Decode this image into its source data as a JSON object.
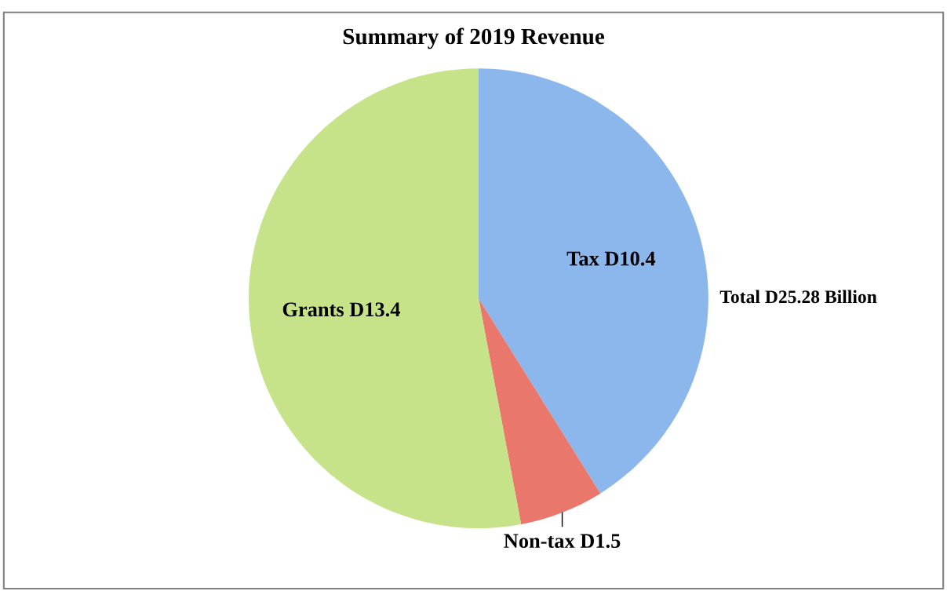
{
  "chart_data": {
    "type": "pie",
    "title": "Summary of 2019 Revenue",
    "categories": [
      "Tax D10.4",
      "Non-tax D1.5",
      "Grants D13.4"
    ],
    "values": [
      10.4,
      1.5,
      13.4
    ],
    "colors": [
      "#8cb7ec",
      "#e9776b",
      "#c6e389"
    ],
    "annotations": [
      "Total D25.28 Billion"
    ],
    "legend": false
  }
}
